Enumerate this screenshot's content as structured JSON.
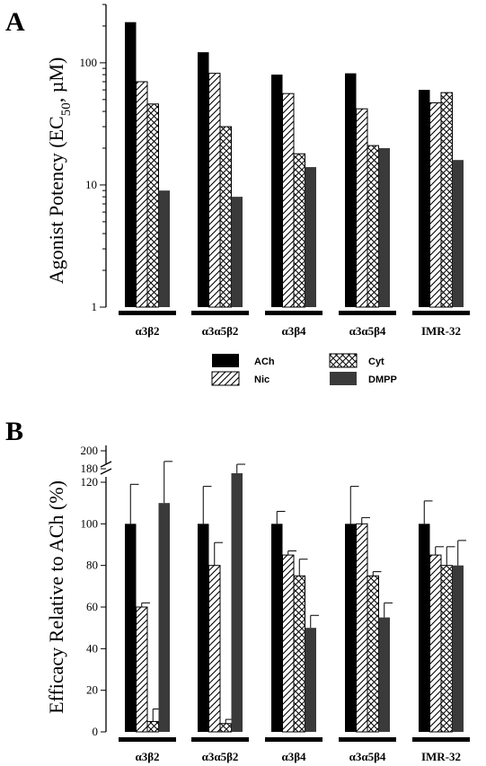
{
  "figure": {
    "panels": [
      "A",
      "B"
    ]
  },
  "legend": [
    {
      "name": "ACh",
      "pattern": "solid",
      "color": "#000000"
    },
    {
      "name": "Cyt",
      "pattern": "crosshatch",
      "color": "#000000"
    },
    {
      "name": "Nic",
      "pattern": "hatch",
      "color": "#000000"
    },
    {
      "name": "DMPP",
      "pattern": "solid",
      "color": "#3a3a3a"
    }
  ],
  "chart_data": [
    {
      "panel": "A",
      "type": "bar",
      "ylabel": "Agonist Potency (EC50, µM)",
      "ylabel_parts": {
        "pre": "Agonist Potency (EC",
        "sub": "50",
        "post": ", µM)"
      },
      "yscale": "log",
      "ylim": [
        1,
        300
      ],
      "yticks": [
        1,
        10,
        100
      ],
      "categories": [
        "α3β2",
        "α3α5β2",
        "α3β4",
        "α3α5β4",
        "IMR-32"
      ],
      "series": [
        {
          "name": "ACh",
          "values": [
            215,
            122,
            80,
            82,
            60
          ]
        },
        {
          "name": "Nic",
          "values": [
            70,
            82,
            56,
            42,
            47
          ]
        },
        {
          "name": "Cyt",
          "values": [
            46,
            30,
            18,
            21,
            57
          ]
        },
        {
          "name": "DMPP",
          "values": [
            9,
            8,
            14,
            20,
            16
          ]
        }
      ]
    },
    {
      "panel": "B",
      "type": "bar",
      "ylabel": "Efficacy Relative to ACh (%)",
      "ylim": [
        0,
        210
      ],
      "axis_break": [
        130,
        170
      ],
      "yticks_lower": [
        0,
        20,
        40,
        60,
        80,
        100,
        120
      ],
      "yticks_upper": [
        180,
        200
      ],
      "categories": [
        "α3β2",
        "α3α5β2",
        "α3β4",
        "α3α5β4",
        "IMR-32"
      ],
      "series": [
        {
          "name": "ACh",
          "values": [
            100,
            100,
            100,
            100,
            100
          ],
          "errors": [
            19,
            18,
            6,
            18,
            11
          ]
        },
        {
          "name": "Nic",
          "values": [
            60,
            80,
            85,
            100,
            85
          ],
          "errors": [
            2,
            11,
            2,
            3,
            4
          ]
        },
        {
          "name": "Cyt",
          "values": [
            5,
            4,
            75,
            75,
            80
          ],
          "errors": [
            6,
            2,
            8,
            2,
            9
          ]
        },
        {
          "name": "DMPP",
          "values": [
            110,
            175,
            50,
            55,
            80
          ],
          "errors": [
            20,
            10,
            6,
            7,
            12
          ]
        }
      ]
    }
  ]
}
